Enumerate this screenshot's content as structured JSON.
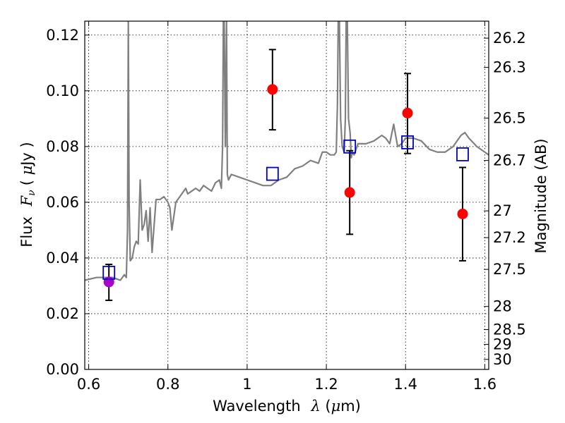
{
  "chart_data": {
    "type": "scatter",
    "xlabel_text": "Wavelength",
    "xlabel_symbol": "λ",
    "xlabel_unit_open": " (",
    "xlabel_unit_mu": "μ",
    "xlabel_unit_close": "m)",
    "ylabel_text": "Flux",
    "ylabel_symbol": "F",
    "ylabel_sub": "ν",
    "ylabel_unit_open": "( ",
    "ylabel_unit_mu": "μ",
    "ylabel_unit_close": "Jy )",
    "y2label": "Magnitude (AB)",
    "xlim": [
      0.59,
      1.61
    ],
    "ylim": [
      0.0,
      0.125
    ],
    "grid": true,
    "xticks": [
      0.6,
      0.8,
      1.0,
      1.2,
      1.4,
      1.6
    ],
    "xtick_labels": [
      "0.6",
      "0.8",
      "1",
      "1.2",
      "1.4",
      "1.6"
    ],
    "yticks": [
      0.0,
      0.02,
      0.04,
      0.06,
      0.08,
      0.1,
      0.12
    ],
    "ytick_labels": [
      "0.00",
      "0.02",
      "0.04",
      "0.06",
      "0.08",
      "0.10",
      "0.12"
    ],
    "y2ticks": [
      {
        "label": "26.2",
        "flux": 0.1189
      },
      {
        "label": "26.3",
        "flux": 0.1084
      },
      {
        "label": "26.5",
        "flux": 0.0902
      },
      {
        "label": "26.7",
        "flux": 0.075
      },
      {
        "label": "27",
        "flux": 0.0569
      },
      {
        "label": "27.2",
        "flux": 0.0473
      },
      {
        "label": "27.5",
        "flux": 0.0359
      },
      {
        "label": "28",
        "flux": 0.0226
      },
      {
        "label": "28.5",
        "flux": 0.0143
      },
      {
        "label": "29",
        "flux": 0.009
      },
      {
        "label": "30",
        "flux": 0.0036
      }
    ],
    "series": [
      {
        "kind": "model_spectrum",
        "color": "#808080",
        "x": [
          0.59,
          0.62,
          0.64,
          0.66,
          0.68,
          0.69,
          0.695,
          0.698,
          0.7,
          0.702,
          0.705,
          0.71,
          0.715,
          0.72,
          0.725,
          0.73,
          0.735,
          0.74,
          0.745,
          0.75,
          0.755,
          0.76,
          0.77,
          0.78,
          0.79,
          0.8,
          0.805,
          0.81,
          0.82,
          0.83,
          0.84,
          0.845,
          0.85,
          0.86,
          0.87,
          0.88,
          0.89,
          0.9,
          0.91,
          0.92,
          0.93,
          0.935,
          0.938,
          0.94,
          0.942,
          0.945,
          0.948,
          0.95,
          0.953,
          0.96,
          0.98,
          1.0,
          1.02,
          1.04,
          1.06,
          1.08,
          1.1,
          1.12,
          1.14,
          1.16,
          1.18,
          1.19,
          1.2,
          1.21,
          1.22,
          1.225,
          1.228,
          1.23,
          1.233,
          1.236,
          1.24,
          1.245,
          1.248,
          1.25,
          1.253,
          1.256,
          1.26,
          1.263,
          1.266,
          1.27,
          1.28,
          1.3,
          1.32,
          1.34,
          1.35,
          1.36,
          1.37,
          1.38,
          1.39,
          1.4,
          1.42,
          1.44,
          1.46,
          1.48,
          1.5,
          1.52,
          1.54,
          1.55,
          1.56,
          1.58,
          1.6,
          1.61
        ],
        "y": [
          0.032,
          0.033,
          0.033,
          0.033,
          0.032,
          0.034,
          0.033,
          0.05,
          0.125,
          0.06,
          0.039,
          0.04,
          0.044,
          0.046,
          0.045,
          0.068,
          0.05,
          0.052,
          0.057,
          0.046,
          0.058,
          0.042,
          0.061,
          0.061,
          0.062,
          0.06,
          0.058,
          0.05,
          0.06,
          0.062,
          0.064,
          0.065,
          0.063,
          0.064,
          0.065,
          0.064,
          0.066,
          0.065,
          0.064,
          0.067,
          0.068,
          0.065,
          0.08,
          0.125,
          0.125,
          0.08,
          0.125,
          0.07,
          0.068,
          0.07,
          0.069,
          0.068,
          0.067,
          0.066,
          0.066,
          0.068,
          0.069,
          0.072,
          0.073,
          0.075,
          0.074,
          0.078,
          0.078,
          0.077,
          0.077,
          0.078,
          0.095,
          0.125,
          0.125,
          0.09,
          0.08,
          0.078,
          0.09,
          0.125,
          0.125,
          0.09,
          0.085,
          0.076,
          0.078,
          0.077,
          0.081,
          0.081,
          0.082,
          0.084,
          0.083,
          0.081,
          0.088,
          0.08,
          0.081,
          0.083,
          0.083,
          0.082,
          0.079,
          0.078,
          0.078,
          0.08,
          0.084,
          0.085,
          0.083,
          0.08,
          0.078,
          0.077
        ]
      },
      {
        "kind": "model_photometry",
        "marker": "open-square",
        "color": "#0000cc",
        "x": [
          0.651,
          1.064,
          1.259,
          1.405,
          1.544
        ],
        "y": [
          0.0347,
          0.0702,
          0.08,
          0.0815,
          0.0772
        ]
      },
      {
        "kind": "observed",
        "marker": "filled-circle",
        "color": "#ff0000",
        "x": [
          1.064,
          1.259,
          1.405,
          1.544
        ],
        "y": [
          0.1005,
          0.0635,
          0.092,
          0.0558
        ],
        "err_low": [
          0.086,
          0.0485,
          0.0775,
          0.039
        ],
        "err_high": [
          0.1148,
          0.0785,
          0.1062,
          0.0725
        ]
      },
      {
        "kind": "observed",
        "marker": "filled-circle",
        "color": "#aa00cc",
        "x": [
          0.651
        ],
        "y": [
          0.0314
        ],
        "err_low": [
          0.0248
        ],
        "err_high": [
          0.0377
        ]
      }
    ]
  }
}
